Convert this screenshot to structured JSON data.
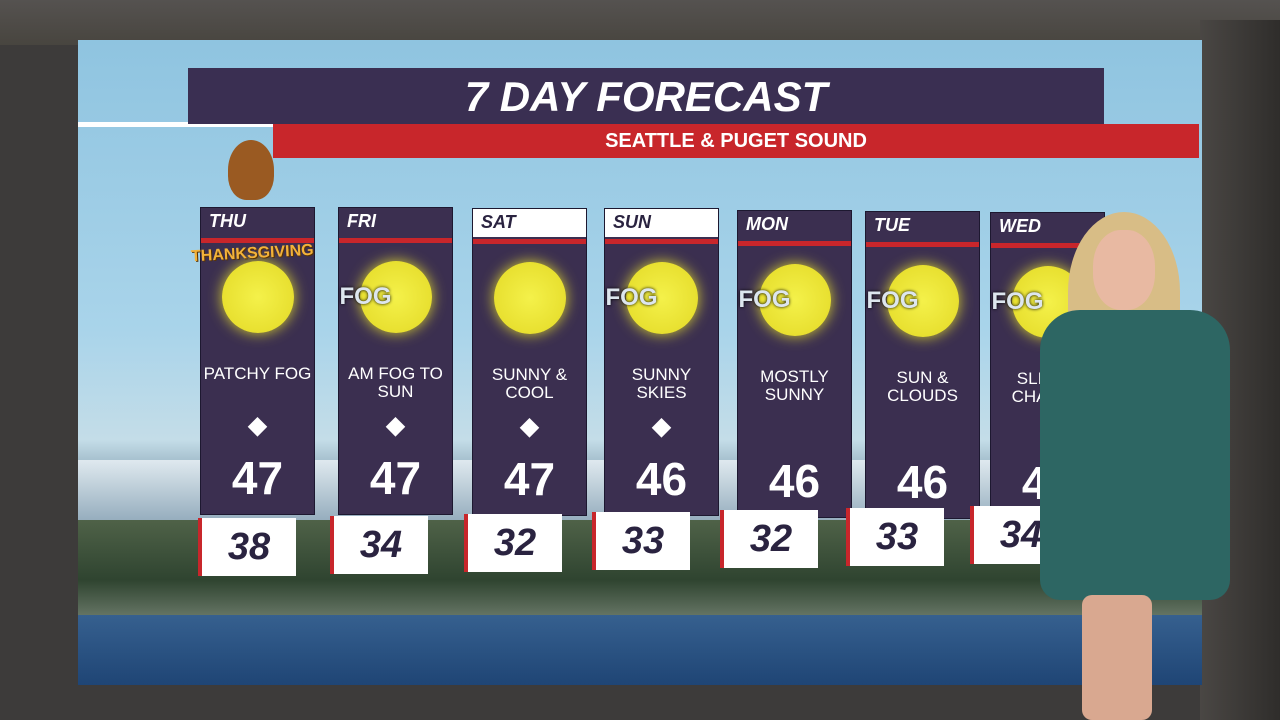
{
  "header": {
    "title": "7 DAY FORECAST",
    "subtitle": "SEATTLE & PUGET SOUND"
  },
  "holiday_label": "THANKSGIVING",
  "colors": {
    "panel": "#3b2f50",
    "accent_red": "#c8262b",
    "sun": "#e8e030"
  },
  "days": [
    {
      "day": "THU",
      "condition": "PATCHY FOG",
      "icon": "sun-cloud-icon",
      "logo": "seahawks-logo",
      "high": "47",
      "low": "38"
    },
    {
      "day": "FRI",
      "condition": "AM FOG TO SUN",
      "icon": "sun-fog-icon",
      "logo": "kraken-logo",
      "high": "47",
      "low": "34",
      "fog": "FOG"
    },
    {
      "day": "SAT",
      "condition": "SUNNY & COOL",
      "icon": "sun-haze-icon",
      "logo": "uw-wsu-logos",
      "high": "47",
      "low": "32"
    },
    {
      "day": "SUN",
      "condition": "SUNNY SKIES",
      "icon": "sun-fog-icon",
      "logo": "sounders-logo",
      "high": "46",
      "low": "33",
      "fog": "FOG"
    },
    {
      "day": "MON",
      "condition": "MOSTLY SUNNY",
      "icon": "sun-fog-icon",
      "high": "46",
      "low": "32",
      "fog": "FOG"
    },
    {
      "day": "TUE",
      "condition": "SUN & CLOUDS",
      "icon": "sun-fog-icon",
      "high": "46",
      "low": "33",
      "fog": "FOG"
    },
    {
      "day": "WED",
      "condition": "SLIGHT CHANCE",
      "icon": "sun-fog-icon",
      "high": "45",
      "low": "34",
      "fog": "FOG"
    }
  ]
}
